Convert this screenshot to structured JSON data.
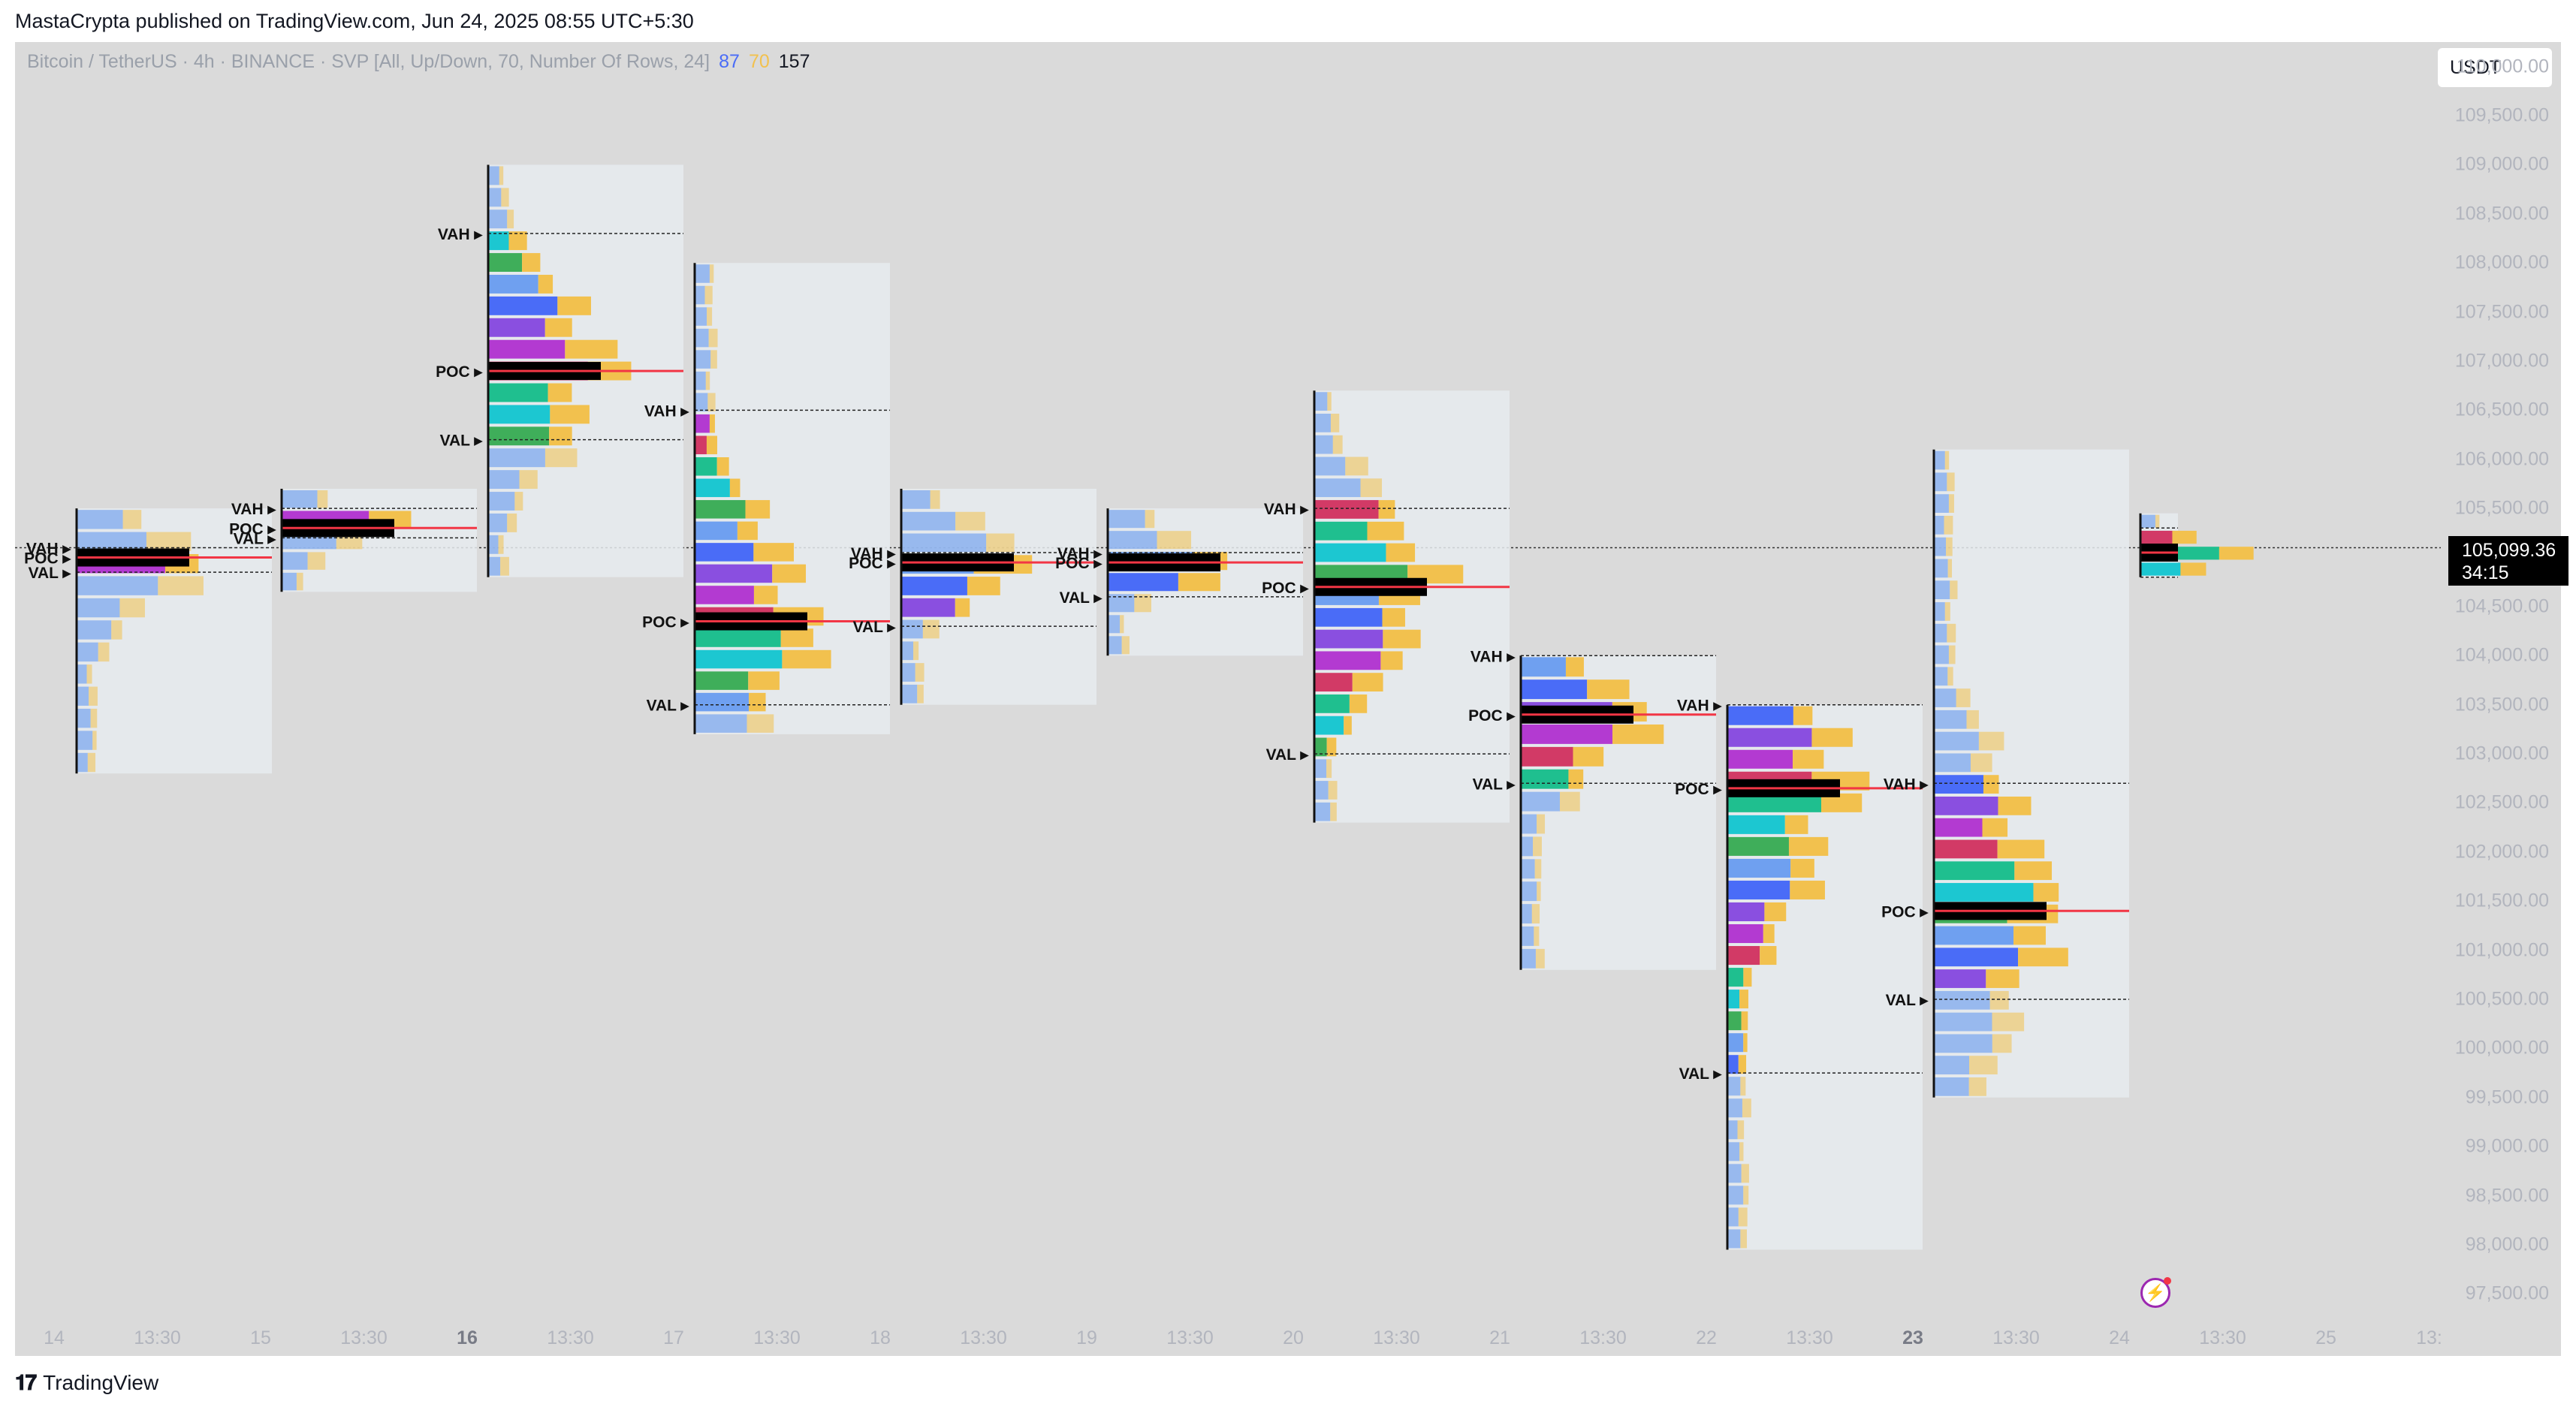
{
  "header": {
    "published_text": "MastaCrypta published on TradingView.com, Jun 24, 2025 08:55 UTC+5:30"
  },
  "legend": {
    "symbol_text": "Bitcoin / TetherUS · 4h · BINANCE · SVP [All, Up/Down, 70, Number Of Rows, 24]",
    "value_1": "87",
    "value_2": "70",
    "value_3": "157"
  },
  "currency": "USDT",
  "last_price": {
    "price": "105,099.36",
    "countdown": "34:15"
  },
  "footer": {
    "brand": "TradingView",
    "logo_icon": "tradingview-logo-icon"
  },
  "colors": {
    "background": "#dadada",
    "up_volume": "#f2c14e",
    "down_volume_blue": "#4a6cf7",
    "poc": "#000000",
    "poc_line": "#f23645",
    "box": "#e6ebef"
  },
  "chart_data": {
    "type": "volume-profile",
    "symbol": "BTC/USDT",
    "timeframe": "4h",
    "price_axis": {
      "range": [
        97250,
        110250
      ],
      "ticks": [
        "110,000.00",
        "109,500.00",
        "109,000.00",
        "108,500.00",
        "108,000.00",
        "107,500.00",
        "107,000.00",
        "106,500.00",
        "106,000.00",
        "105,500.00",
        "105,000.00",
        "104,500.00",
        "104,000.00",
        "103,500.00",
        "103,000.00",
        "102,500.00",
        "102,000.00",
        "101,500.00",
        "101,000.00",
        "100,500.00",
        "100,000.00",
        "99,500.00",
        "99,000.00",
        "98,500.00",
        "98,000.00",
        "97,500.00"
      ]
    },
    "time_axis": {
      "ticks": [
        {
          "label": "14",
          "bold": false
        },
        {
          "label": "13:30",
          "bold": false
        },
        {
          "label": "15",
          "bold": false
        },
        {
          "label": "13:30",
          "bold": false
        },
        {
          "label": "16",
          "bold": true
        },
        {
          "label": "13:30",
          "bold": false
        },
        {
          "label": "17",
          "bold": false
        },
        {
          "label": "13:30",
          "bold": false
        },
        {
          "label": "18",
          "bold": false
        },
        {
          "label": "13:30",
          "bold": false
        },
        {
          "label": "19",
          "bold": false
        },
        {
          "label": "13:30",
          "bold": false
        },
        {
          "label": "20",
          "bold": false
        },
        {
          "label": "13:30",
          "bold": false
        },
        {
          "label": "21",
          "bold": false
        },
        {
          "label": "13:30",
          "bold": false
        },
        {
          "label": "22",
          "bold": false
        },
        {
          "label": "13:30",
          "bold": false
        },
        {
          "label": "23",
          "bold": true
        },
        {
          "label": "13:30",
          "bold": false
        },
        {
          "label": "24",
          "bold": false
        },
        {
          "label": "13:30",
          "bold": false
        },
        {
          "label": "25",
          "bold": false
        },
        {
          "label": "13:",
          "bold": false
        }
      ]
    },
    "profiles": [
      {
        "period": "14",
        "high": 105500,
        "low": 102800,
        "poc": 105000,
        "vah": 105100,
        "val": 104850,
        "labels": [
          "VAH",
          "POC",
          "VAL"
        ]
      },
      {
        "period": "15",
        "high": 105700,
        "low": 104650,
        "poc": 105300,
        "vah": 105500,
        "val": 105200,
        "labels": [
          "VAH",
          "POC",
          "VAL"
        ]
      },
      {
        "period": "16",
        "high": 109000,
        "low": 104800,
        "poc": 106900,
        "vah": 108300,
        "val": 106200,
        "labels": [
          "VAH",
          "POC",
          "VAL"
        ]
      },
      {
        "period": "17",
        "high": 108000,
        "low": 103200,
        "poc": 104350,
        "vah": 106500,
        "val": 103500,
        "labels": [
          "VAH",
          "POC",
          "VAL"
        ]
      },
      {
        "period": "18",
        "high": 105700,
        "low": 103500,
        "poc": 104950,
        "vah": 105050,
        "val": 104300,
        "labels": [
          "VAH",
          "POC",
          "VAL"
        ]
      },
      {
        "period": "19",
        "high": 105500,
        "low": 104000,
        "poc": 104950,
        "vah": 105050,
        "val": 104600,
        "labels": [
          "VAH",
          "POC",
          "VAL"
        ]
      },
      {
        "period": "20",
        "high": 106700,
        "low": 102300,
        "poc": 104700,
        "vah": 105500,
        "val": 103000,
        "labels": [
          "VAH",
          "POC",
          "VAL"
        ]
      },
      {
        "period": "21",
        "high": 104000,
        "low": 100800,
        "poc": 103400,
        "vah": 104000,
        "val": 102700,
        "labels": [
          "VAH",
          "POC",
          "VAL"
        ]
      },
      {
        "period": "22",
        "high": 103500,
        "low": 97950,
        "poc": 102650,
        "vah": 103500,
        "val": 99750,
        "labels": [
          "VAH",
          "POC",
          "VAL"
        ]
      },
      {
        "period": "23",
        "high": 106100,
        "low": 99500,
        "poc": 101400,
        "vah": 102700,
        "val": 100500,
        "labels": [
          "VAH",
          "POC",
          "VAL"
        ]
      },
      {
        "period": "24",
        "high": 105450,
        "low": 104800,
        "poc": 105050,
        "vah": 105300,
        "val": 104800,
        "labels": []
      }
    ]
  }
}
